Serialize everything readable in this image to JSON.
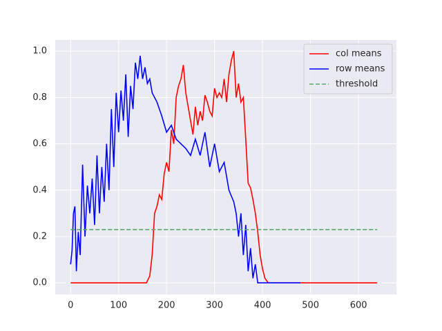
{
  "chart_data": {
    "type": "line",
    "xlim": [
      -32,
      679
    ],
    "ylim": [
      -0.05,
      1.048
    ],
    "xticks": [
      0,
      100,
      200,
      300,
      400,
      500,
      600
    ],
    "yticks": [
      {
        "value": 0,
        "label": "0.0"
      },
      0.2,
      0.4,
      0.6,
      0.8,
      {
        "value": 1,
        "label": "1.0"
      }
    ],
    "grid": true,
    "legend": "upper right",
    "series": [
      {
        "name": "col means",
        "color": "#ff0000",
        "style": "solid",
        "x": [
          0,
          50,
          100,
          150,
          158,
          165,
          170,
          175,
          180,
          185,
          190,
          195,
          200,
          205,
          210,
          215,
          220,
          225,
          230,
          235,
          240,
          245,
          250,
          255,
          260,
          265,
          270,
          275,
          280,
          285,
          290,
          295,
          300,
          305,
          310,
          315,
          320,
          325,
          330,
          335,
          340,
          345,
          350,
          355,
          360,
          365,
          370,
          375,
          380,
          385,
          390,
          395,
          400,
          405,
          412,
          450,
          500,
          550,
          600,
          639
        ],
        "values": [
          0,
          0,
          0,
          0,
          0.0,
          0.03,
          0.12,
          0.3,
          0.33,
          0.38,
          0.36,
          0.47,
          0.52,
          0.48,
          0.66,
          0.6,
          0.8,
          0.85,
          0.88,
          0.94,
          0.82,
          0.76,
          0.7,
          0.64,
          0.76,
          0.68,
          0.74,
          0.7,
          0.81,
          0.78,
          0.74,
          0.72,
          0.84,
          0.8,
          0.82,
          0.8,
          0.88,
          0.78,
          0.9,
          0.96,
          1.0,
          0.8,
          0.86,
          0.78,
          0.8,
          0.62,
          0.43,
          0.41,
          0.36,
          0.3,
          0.22,
          0.12,
          0.06,
          0.02,
          0,
          0,
          0,
          0,
          0,
          0
        ]
      },
      {
        "name": "row means",
        "color": "#0000ff",
        "style": "solid",
        "x": [
          0,
          3,
          6,
          9,
          12,
          16,
          20,
          25,
          30,
          35,
          40,
          45,
          50,
          55,
          60,
          65,
          70,
          75,
          80,
          85,
          90,
          95,
          100,
          105,
          110,
          115,
          120,
          125,
          130,
          135,
          140,
          145,
          150,
          155,
          160,
          165,
          170,
          180,
          190,
          200,
          210,
          220,
          230,
          240,
          250,
          260,
          270,
          280,
          290,
          300,
          310,
          320,
          330,
          340,
          345,
          350,
          355,
          360,
          365,
          370,
          375,
          380,
          385,
          390,
          395,
          420,
          450,
          479
        ],
        "values": [
          0.08,
          0.14,
          0.3,
          0.33,
          0.05,
          0.22,
          0.12,
          0.51,
          0.2,
          0.42,
          0.3,
          0.45,
          0.25,
          0.55,
          0.3,
          0.5,
          0.35,
          0.6,
          0.4,
          0.75,
          0.5,
          0.82,
          0.65,
          0.83,
          0.7,
          0.9,
          0.63,
          0.85,
          0.75,
          0.95,
          0.88,
          0.98,
          0.88,
          0.93,
          0.86,
          0.88,
          0.82,
          0.78,
          0.72,
          0.65,
          0.68,
          0.62,
          0.6,
          0.58,
          0.55,
          0.62,
          0.55,
          0.65,
          0.5,
          0.6,
          0.48,
          0.52,
          0.4,
          0.35,
          0.3,
          0.2,
          0.3,
          0.12,
          0.25,
          0.05,
          0.15,
          0.02,
          0.08,
          0.0,
          0.0,
          0,
          0,
          0
        ]
      },
      {
        "name": "threshold",
        "color": "#55a868",
        "style": "dashed",
        "x": [
          0,
          639
        ],
        "values": [
          0.23,
          0.23
        ]
      }
    ]
  }
}
